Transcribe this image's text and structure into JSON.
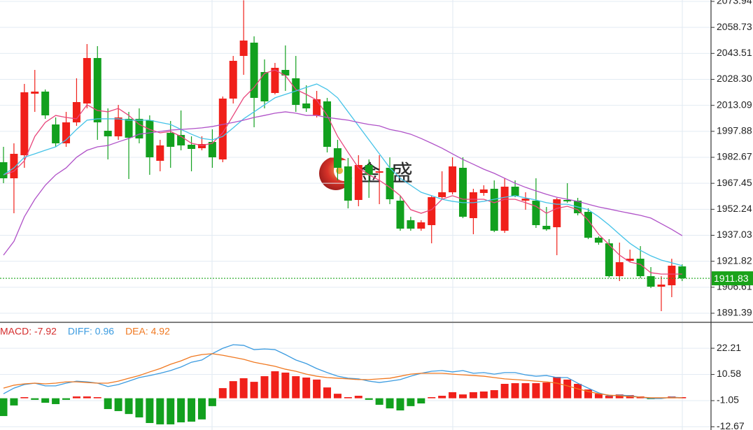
{
  "chart_data": [
    {
      "type": "candlestick",
      "ylim": [
        1886.48,
        2074.76
      ],
      "yticks": [
        2073.94,
        2058.73,
        2043.51,
        {
          "value": 2028.3,
          "label": "2028.30"
        },
        2013.09,
        1997.88,
        1982.67,
        1967.45,
        1952.24,
        1937.03,
        1921.82,
        1906.61,
        1891.39
      ],
      "grid": true,
      "up_color": "#f0201a",
      "down_color": "#12a01e",
      "open": [
        1979.8,
        1970.39,
        1983.9,
        2019.91,
        2021.14,
        2001.9,
        1990.85,
        2003.13,
        2014.18,
        2040.79,
        1998.22,
        1994.95,
        2005.18,
        2005.18,
        2004.36,
        1980.62,
        1996.99,
        1995.77,
        1990.03,
        1987.99,
        1991.67,
        1981.44,
        2017.05,
        2042.02,
        2049.79,
        2032.6,
        2020.32,
        2033.83,
        2028.92,
        2014.18,
        2007.23,
        2015.41,
        1987.99,
        1977.35,
        1957.7,
        1978.17,
        1973.66,
        1976.53,
        1957.29,
        1945.83,
        1940.92,
        1942.97,
        1959.34,
        1962.2,
        1976.53,
        1947.06,
        1961.79,
        1964.25,
        1939.69,
        1965.48,
        1957.29,
        1957.29,
        1942.56,
        1941.74,
        1957.7,
        1957.29,
        1950.74,
        1935.6,
        1932.32,
        1913.09,
        1922.09,
        1923.32,
        1913.09,
        1906.95,
        1907.76,
        1918.82
      ],
      "high": [
        1988.81,
        1990.85,
        2025.64,
        2033.83,
        2022.37,
        2006.0,
        2009.27,
        2028.92,
        2048.97,
        2047.75,
        2011.32,
        2013.36,
        2009.27,
        2011.32,
        2007.23,
        1992.9,
        2003.95,
        2010.09,
        1994.95,
        1994.95,
        1999.04,
        2018.28,
        2042.02,
        2074.6,
        2053.48,
        2039.97,
        2037.92,
        2048.16,
        2042.02,
        2024.83,
        2021.55,
        2017.46,
        1992.9,
        1982.26,
        1983.9,
        1981.44,
        1983.9,
        1982.67,
        1960.16,
        1947.88,
        1945.83,
        1960.16,
        1974.48,
        1982.67,
        1982.67,
        1964.25,
        1966.3,
        1969.16,
        1970.39,
        1969.16,
        1962.2,
        1970.39,
        1953.61,
        1958.93,
        1967.52,
        1958.93,
        1952.79,
        1936.42,
        1934.78,
        1932.73,
        1928.64,
        1930.69,
        1918.41,
        1913.09,
        1923.32,
        1920.04
      ],
      "low": [
        1967.52,
        1949.92,
        1976.53,
        2009.27,
        2005.18,
        1988.81,
        1988.81,
        2001.09,
        2011.32,
        1992.9,
        1981.44,
        1992.9,
        1969.98,
        1990.85,
        1972.43,
        1974.48,
        1976.53,
        1986.76,
        1974.48,
        1986.76,
        1976.53,
        1979.8,
        2014.18,
        2030.96,
        2000.27,
        2011.32,
        2019.5,
        2021.55,
        2009.27,
        2009.27,
        2006.0,
        1985.53,
        1969.16,
        1952.79,
        1954.02,
        1958.93,
        1955.24,
        1955.24,
        1939.69,
        1939.69,
        1939.69,
        1932.32,
        1958.11,
        1960.97,
        1947.06,
        1937.64,
        1960.16,
        1938.87,
        1938.46,
        1959.34,
        1951.97,
        1941.33,
        1939.69,
        1925.37,
        1956.06,
        1948.7,
        1934.78,
        1931.5,
        1912.27,
        1910.22,
        1921.27,
        1911.86,
        1906.13,
        1892.62,
        1900.81,
        1910.22
      ],
      "close": [
        1970.39,
        1984.71,
        2020.73,
        2021.14,
        2007.23,
        1990.85,
        2003.13,
        2015.0,
        2040.79,
        2003.13,
        1994.95,
        2006.0,
        1994.13,
        1993.72,
        1982.67,
        1989.63,
        1988.81,
        1989.63,
        1987.58,
        1990.44,
        1982.67,
        2017.05,
        2039.15,
        2051.02,
        2017.46,
        2015.41,
        2035.06,
        2030.56,
        2013.36,
        2011.32,
        2016.64,
        1988.81,
        1976.53,
        1957.29,
        1978.17,
        1972.43,
        1974.48,
        1958.11,
        1940.92,
        1940.92,
        1944.6,
        1959.34,
        1962.2,
        1977.35,
        1947.88,
        1962.2,
        1963.84,
        1939.69,
        1965.48,
        1960.16,
        1958.52,
        1942.97,
        1940.51,
        1958.11,
        1956.88,
        1949.92,
        1935.6,
        1932.73,
        1913.09,
        1921.27,
        1923.32,
        1913.09,
        1906.95,
        1908.17,
        1919.23,
        1911.83
      ],
      "series": [
        {
          "color": "#e8467c",
          "values": [
            1972.4,
            1974.5,
            1980.6,
            1994.9,
            2003.1,
            2007.2,
            2006.0,
            2005.2,
            2013.4,
            2010.1,
            2009.3,
            2011.3,
            2007.2,
            2001.9,
            1999.0,
            1997.0,
            1997.8,
            1994.9,
            1990.9,
            1989.6,
            1990.9,
            1997.0,
            2007.2,
            2017.5,
            2023.6,
            2031.8,
            2033.8,
            2030.5,
            2022.4,
            2019.5,
            2016.2,
            2007.2,
            1994.9,
            1985.5,
            1976.5,
            1972.4,
            1969.2,
            1965.1,
            1960.2,
            1952.0,
            1949.9,
            1952.0,
            1958.1,
            1960.2,
            1958.1,
            1958.1,
            1958.1,
            1956.1,
            1958.1,
            1958.1,
            1956.1,
            1954.0,
            1949.9,
            1952.8,
            1954.0,
            1952.0,
            1945.8,
            1937.6,
            1931.5,
            1925.4,
            1921.3,
            1920.0,
            1915.1,
            1914.3,
            1914.3,
            1914.3
          ]
        },
        {
          "color": "#45c3e8",
          "values": [
            1972.4,
            1976.5,
            1982.7,
            1984.7,
            1986.8,
            1988.8,
            1992.9,
            1999.0,
            2004.4,
            2005.2,
            2005.2,
            2005.2,
            2004.4,
            2004.4,
            2004.4,
            2003.1,
            2001.9,
            1999.0,
            1996.2,
            1993.7,
            1992.9,
            1994.9,
            1999.9,
            2005.2,
            2009.3,
            2013.4,
            2017.5,
            2019.5,
            2021.5,
            2023.6,
            2025.6,
            2022.4,
            2017.5,
            2009.3,
            2001.1,
            1992.9,
            1984.7,
            1976.5,
            1970.4,
            1966.3,
            1962.2,
            1960.2,
            1958.1,
            1956.9,
            1956.1,
            1956.1,
            1956.9,
            1958.1,
            1959.3,
            1960.2,
            1958.9,
            1957.7,
            1956.1,
            1955.2,
            1955.2,
            1953.6,
            1952.0,
            1947.9,
            1943.0,
            1937.6,
            1932.3,
            1928.2,
            1925.0,
            1922.5,
            1920.9,
            1919.2
          ]
        },
        {
          "color": "#b052c8",
          "values": [
            1925.4,
            1933.5,
            1947.9,
            1958.1,
            1966.3,
            1972.4,
            1976.5,
            1982.7,
            1986.8,
            1988.8,
            1989.6,
            1991.7,
            1993.7,
            1996.2,
            1997.0,
            1997.8,
            1998.6,
            1999.0,
            1999.4,
            1999.9,
            2000.7,
            2001.9,
            2003.1,
            2004.4,
            2006.0,
            2007.2,
            2008.5,
            2009.3,
            2008.5,
            2007.2,
            2007.2,
            2006.0,
            2005.2,
            2004.4,
            2003.1,
            2001.9,
            2001.1,
            1999.0,
            1997.8,
            1996.2,
            1993.7,
            1990.9,
            1988.0,
            1984.7,
            1981.4,
            1978.6,
            1975.7,
            1973.3,
            1970.4,
            1967.5,
            1965.1,
            1963.0,
            1961.0,
            1959.3,
            1958.1,
            1956.9,
            1955.2,
            1953.6,
            1952.4,
            1951.1,
            1949.9,
            1948.7,
            1947.1,
            1943.8,
            1940.5,
            1936.8
          ]
        }
      ],
      "last_price": 1911.83,
      "last_price_color": "#1aa31a",
      "watermark": "金盛"
    },
    {
      "type": "macd",
      "ylim": [
        -14.1,
        33.42
      ],
      "yticks": [
        22.21,
        10.58,
        -1.05,
        -12.67
      ],
      "grid": true,
      "up_color": "#f0201a",
      "down_color": "#12a01e",
      "series": [
        {
          "name": "MACD: -7.92",
          "kind": "histogram",
          "color": "#d42a2a",
          "values": [
            -7.9,
            -3.2,
            0.5,
            -0.7,
            -2.0,
            -2.6,
            -0.7,
            0.8,
            0.8,
            0.5,
            -4.8,
            -5.7,
            -7.0,
            -8.5,
            -11.0,
            -11.6,
            -11.6,
            -10.7,
            -10.4,
            -9.4,
            -3.5,
            4.5,
            7.6,
            8.9,
            7.3,
            9.8,
            12.0,
            11.4,
            9.8,
            9.2,
            8.3,
            4.8,
            2.0,
            0.5,
            1.1,
            -0.7,
            -2.9,
            -4.5,
            -5.4,
            -3.5,
            -2.3,
            0.5,
            1.1,
            2.7,
            1.7,
            2.7,
            3.0,
            3.6,
            6.4,
            6.7,
            6.7,
            6.7,
            7.0,
            9.5,
            8.3,
            6.4,
            3.9,
            2.0,
            1.1,
            1.7,
            1.4,
            0.8,
            -0.4,
            0.2,
            0.8,
            0.5
          ]
        },
        {
          "name": "DIFF: 0.96",
          "kind": "line",
          "color": "#3b9be0",
          "values": [
            2.0,
            4.5,
            6.1,
            6.7,
            5.5,
            5.5,
            6.7,
            7.6,
            7.3,
            6.7,
            5.2,
            6.1,
            7.6,
            9.2,
            10.1,
            11.1,
            12.3,
            13.9,
            16.0,
            17.0,
            19.8,
            22.2,
            23.8,
            23.5,
            21.6,
            21.9,
            21.6,
            19.4,
            17.0,
            15.4,
            13.2,
            11.4,
            9.8,
            8.9,
            8.6,
            7.6,
            7.0,
            7.6,
            8.3,
            9.8,
            11.1,
            12.0,
            12.3,
            11.7,
            12.3,
            11.1,
            11.4,
            10.7,
            11.4,
            11.4,
            10.4,
            9.8,
            10.1,
            9.2,
            9.2,
            6.7,
            4.5,
            2.4,
            1.1,
            1.4,
            1.1,
            0.5,
            -0.1,
            -0.1,
            0.5,
            0.2
          ]
        },
        {
          "name": "DEA: 4.92",
          "kind": "line",
          "color": "#f07820",
          "values": [
            4.5,
            5.8,
            6.4,
            6.7,
            6.4,
            6.7,
            7.3,
            7.3,
            7.0,
            6.7,
            6.7,
            7.6,
            8.9,
            10.1,
            11.7,
            13.2,
            15.1,
            16.6,
            18.5,
            19.4,
            19.8,
            19.1,
            18.2,
            17.3,
            16.0,
            15.1,
            14.2,
            12.9,
            12.0,
            10.7,
            9.8,
            9.2,
            8.9,
            8.6,
            8.3,
            8.3,
            8.6,
            8.9,
            9.8,
            10.7,
            11.1,
            11.1,
            11.1,
            10.7,
            10.4,
            10.1,
            9.8,
            9.2,
            8.6,
            8.3,
            8.0,
            7.6,
            7.3,
            6.7,
            5.5,
            4.2,
            3.0,
            2.0,
            1.4,
            1.1,
            0.8,
            0.5,
            0.2,
            0.2,
            0.2,
            0.2
          ]
        }
      ]
    }
  ]
}
